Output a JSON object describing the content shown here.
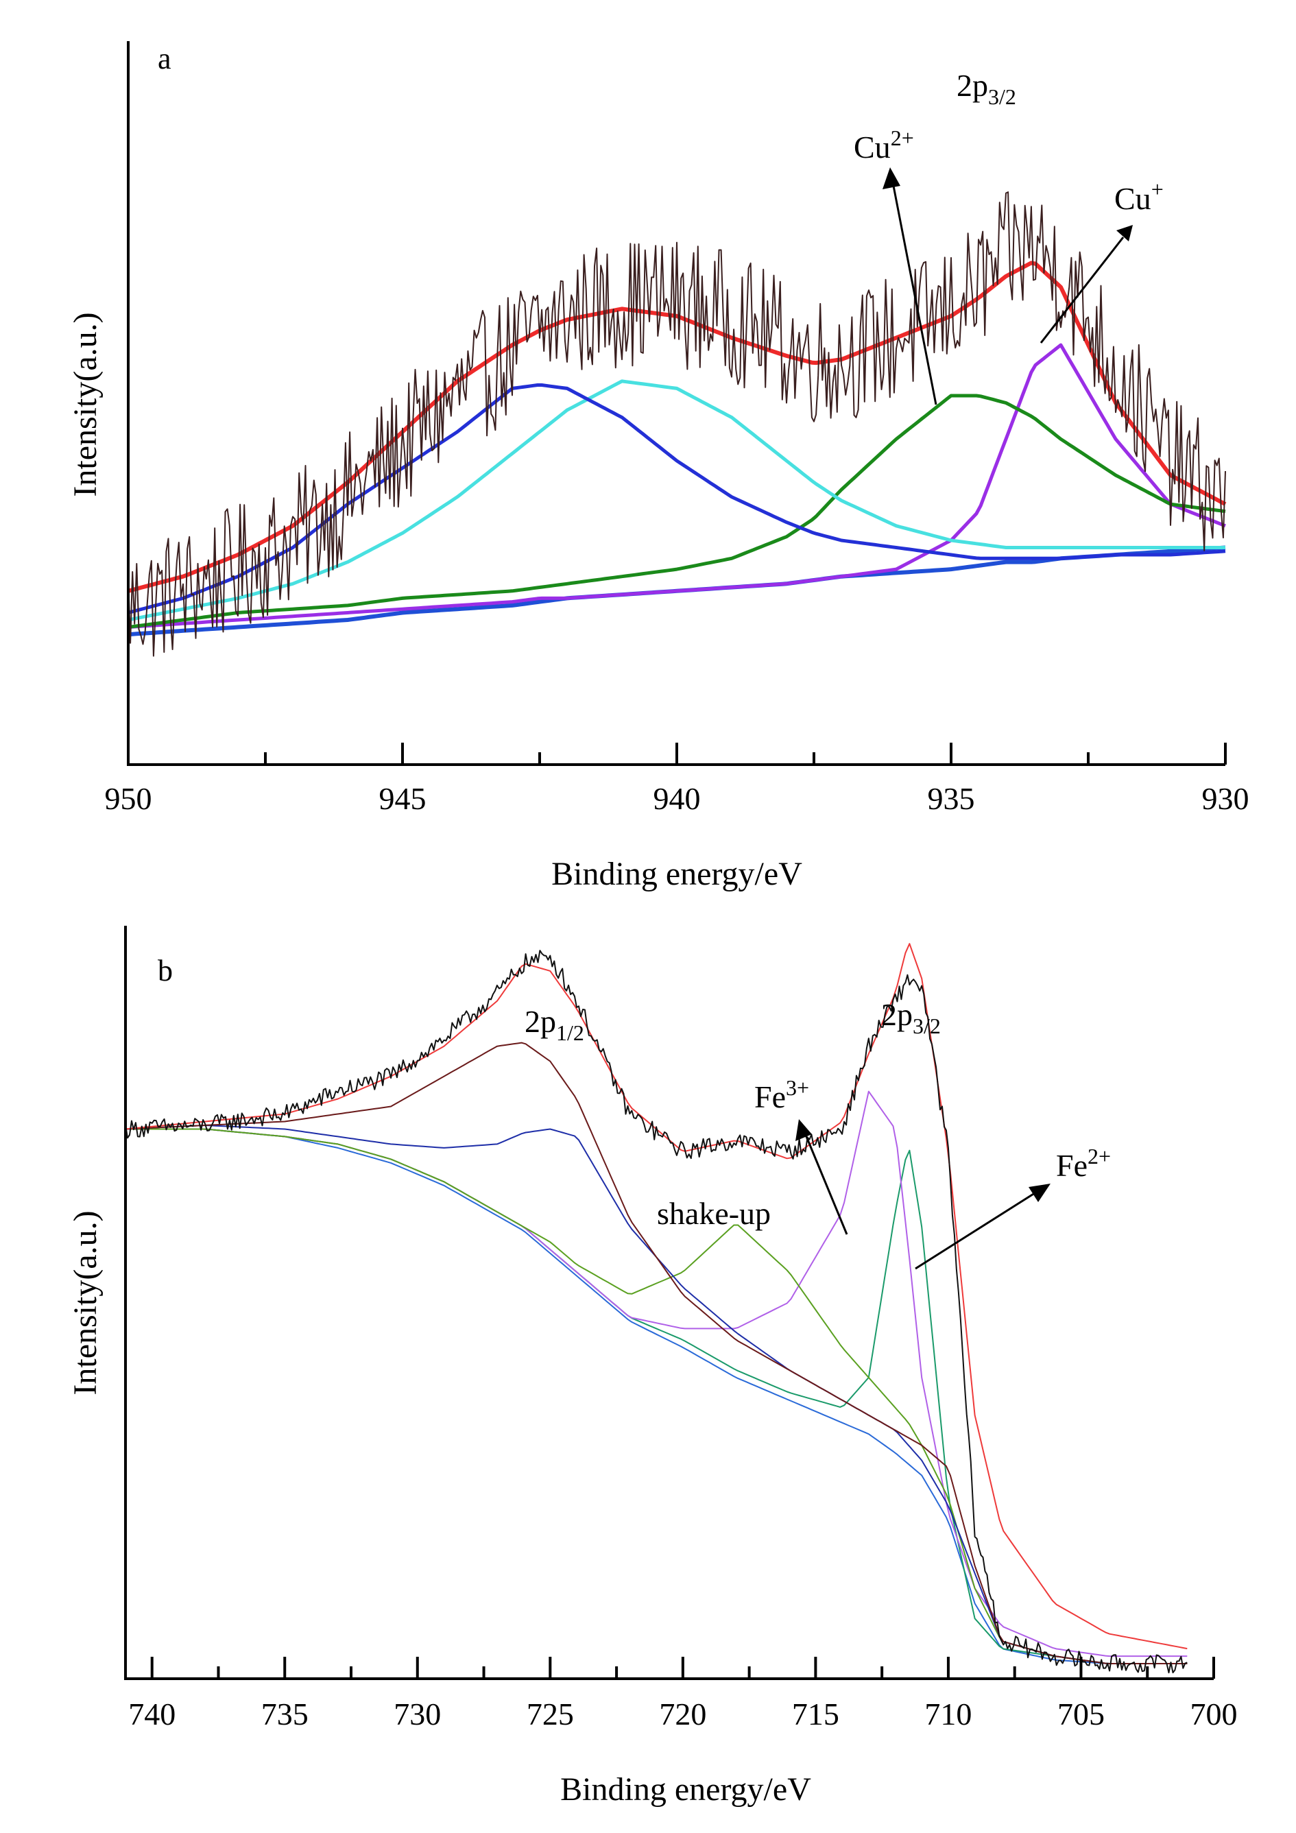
{
  "chart_data": [
    {
      "type": "line",
      "panel_label": "a",
      "xlabel": "Binding energy/eV",
      "ylabel": "Intensity(a.u.)",
      "xlim": [
        950,
        930
      ],
      "ylim": [
        0,
        1
      ],
      "x_ticks": [
        950,
        945,
        940,
        935,
        930
      ],
      "x_tick_labels": [
        "950",
        "945",
        "940",
        "935",
        "930"
      ],
      "x_minor_ticks": [
        947.5,
        942.5,
        937.5,
        932.5
      ],
      "x": [
        950,
        949,
        948,
        947,
        946,
        945,
        944,
        943,
        942.5,
        942,
        941,
        940,
        939,
        938,
        937.5,
        937,
        936,
        935,
        934.5,
        934,
        933.5,
        933,
        932,
        931,
        930
      ],
      "series": [
        {
          "name": "raw",
          "color": "#3a1f1f",
          "width": 2,
          "noise_amplitude": 0.09,
          "values": [
            0.22,
            0.24,
            0.27,
            0.31,
            0.37,
            0.44,
            0.51,
            0.57,
            0.6,
            0.62,
            0.64,
            0.64,
            0.62,
            0.58,
            0.56,
            0.56,
            0.59,
            0.63,
            0.66,
            0.7,
            0.72,
            0.68,
            0.55,
            0.42,
            0.36
          ]
        },
        {
          "name": "envelope",
          "color": "#ee2a2a",
          "width": 6,
          "values": [
            0.24,
            0.26,
            0.29,
            0.33,
            0.39,
            0.46,
            0.53,
            0.58,
            0.6,
            0.615,
            0.63,
            0.62,
            0.59,
            0.565,
            0.555,
            0.56,
            0.59,
            0.62,
            0.645,
            0.675,
            0.695,
            0.66,
            0.5,
            0.4,
            0.36
          ]
        },
        {
          "name": "peak-942.5",
          "color": "#2330d6",
          "width": 5,
          "values": [
            0.21,
            0.23,
            0.26,
            0.3,
            0.36,
            0.41,
            0.46,
            0.52,
            0.525,
            0.52,
            0.48,
            0.42,
            0.37,
            0.335,
            0.32,
            0.31,
            0.3,
            0.29,
            0.285,
            0.285,
            0.285,
            0.285,
            0.29,
            0.29,
            0.295
          ]
        },
        {
          "name": "peak-940",
          "color": "#48e0e0",
          "width": 5,
          "values": [
            0.2,
            0.215,
            0.23,
            0.25,
            0.28,
            0.32,
            0.37,
            0.43,
            0.46,
            0.49,
            0.53,
            0.52,
            0.48,
            0.42,
            0.39,
            0.365,
            0.33,
            0.31,
            0.305,
            0.3,
            0.3,
            0.3,
            0.3,
            0.3,
            0.3
          ]
        },
        {
          "name": "peak-935",
          "color": "#1a8a1a",
          "width": 5,
          "values": [
            0.19,
            0.2,
            0.21,
            0.215,
            0.22,
            0.23,
            0.235,
            0.24,
            0.245,
            0.25,
            0.26,
            0.27,
            0.285,
            0.315,
            0.34,
            0.38,
            0.45,
            0.51,
            0.51,
            0.5,
            0.48,
            0.45,
            0.4,
            0.36,
            0.35
          ]
        },
        {
          "name": "peak-933.3",
          "color": "#9a2ee6",
          "width": 5,
          "values": [
            0.19,
            0.195,
            0.2,
            0.205,
            0.21,
            0.215,
            0.22,
            0.225,
            0.23,
            0.23,
            0.235,
            0.24,
            0.245,
            0.25,
            0.255,
            0.26,
            0.27,
            0.31,
            0.35,
            0.45,
            0.55,
            0.58,
            0.45,
            0.36,
            0.33
          ]
        },
        {
          "name": "baseline",
          "color": "#1f4fd6",
          "width": 6,
          "values": [
            0.18,
            0.185,
            0.19,
            0.195,
            0.2,
            0.21,
            0.215,
            0.22,
            0.225,
            0.23,
            0.235,
            0.24,
            0.245,
            0.25,
            0.255,
            0.26,
            0.265,
            0.27,
            0.275,
            0.28,
            0.28,
            0.285,
            0.29,
            0.295,
            0.3
          ]
        }
      ],
      "annotations": [
        {
          "base": "2p",
          "sub": "3/2"
        },
        {
          "base": "Cu",
          "sup": "2+"
        },
        {
          "base": "Cu",
          "sup": "+"
        }
      ]
    },
    {
      "type": "line",
      "panel_label": "b",
      "xlabel": "Binding energy/eV",
      "ylabel": "Intensity(a.u.)",
      "xlim": [
        741,
        700
      ],
      "ylim": [
        0,
        1
      ],
      "x_ticks": [
        740,
        735,
        730,
        725,
        720,
        715,
        710,
        705,
        700
      ],
      "x_tick_labels": [
        "740",
        "735",
        "730",
        "725",
        "720",
        "715",
        "710",
        "705",
        "700"
      ],
      "x_minor_ticks": [
        737.5,
        732.5,
        727.5,
        722.5,
        717.5,
        712.5,
        707.5,
        702.5
      ],
      "x": [
        741,
        738,
        735,
        733,
        731,
        729,
        727,
        726,
        725,
        724,
        722,
        720,
        718,
        716,
        714,
        713,
        712,
        711.5,
        711,
        710,
        709,
        708,
        706,
        704,
        701
      ],
      "series": [
        {
          "name": "raw",
          "color": "#111111",
          "width": 2,
          "noise_amplitude": 0.012,
          "values": [
            0.73,
            0.735,
            0.75,
            0.78,
            0.8,
            0.85,
            0.91,
            0.95,
            0.96,
            0.9,
            0.75,
            0.7,
            0.715,
            0.7,
            0.73,
            0.84,
            0.9,
            0.93,
            0.92,
            0.7,
            0.2,
            0.05,
            0.03,
            0.02,
            0.02
          ]
        },
        {
          "name": "envelope",
          "color": "#ee3a3a",
          "width": 2,
          "values": [
            0.73,
            0.74,
            0.75,
            0.77,
            0.8,
            0.84,
            0.9,
            0.95,
            0.94,
            0.89,
            0.76,
            0.7,
            0.715,
            0.69,
            0.74,
            0.83,
            0.91,
            0.98,
            0.93,
            0.7,
            0.35,
            0.2,
            0.1,
            0.06,
            0.04
          ]
        },
        {
          "name": "peak-726.5",
          "color": "#6a1a1a",
          "width": 2,
          "values": [
            0.73,
            0.735,
            0.74,
            0.75,
            0.76,
            0.8,
            0.84,
            0.845,
            0.82,
            0.77,
            0.61,
            0.51,
            0.45,
            0.41,
            0.37,
            0.35,
            0.33,
            0.32,
            0.31,
            0.28,
            0.15,
            0.05,
            0.03,
            0.02,
            0.02
          ]
        },
        {
          "name": "peak-725",
          "color": "#1e2ea8",
          "width": 2,
          "values": [
            0.73,
            0.735,
            0.73,
            0.72,
            0.71,
            0.705,
            0.71,
            0.725,
            0.73,
            0.72,
            0.6,
            0.52,
            0.46,
            0.41,
            0.37,
            0.35,
            0.33,
            0.31,
            0.29,
            0.23,
            0.14,
            0.05,
            0.03,
            0.02,
            0.02
          ]
        },
        {
          "name": "shake-up",
          "color": "#5aa020",
          "width": 2,
          "values": [
            0.73,
            0.73,
            0.72,
            0.71,
            0.69,
            0.66,
            0.62,
            0.6,
            0.58,
            0.55,
            0.51,
            0.54,
            0.605,
            0.54,
            0.44,
            0.4,
            0.36,
            0.34,
            0.31,
            0.24,
            0.12,
            0.05,
            0.03,
            0.02,
            0.02
          ]
        },
        {
          "name": "peak-713.3",
          "color": "#b060e8",
          "width": 2,
          "values": [
            0.73,
            0.73,
            0.72,
            0.71,
            0.69,
            0.66,
            0.62,
            0.6,
            0.57,
            0.54,
            0.48,
            0.465,
            0.465,
            0.5,
            0.62,
            0.78,
            0.73,
            0.57,
            0.4,
            0.22,
            0.12,
            0.07,
            0.04,
            0.03,
            0.03
          ]
        },
        {
          "name": "peak-711.3",
          "color": "#1a9a6a",
          "width": 2,
          "values": [
            0.73,
            0.73,
            0.72,
            0.71,
            0.69,
            0.66,
            0.62,
            0.6,
            0.57,
            0.54,
            0.48,
            0.45,
            0.41,
            0.38,
            0.36,
            0.4,
            0.62,
            0.71,
            0.6,
            0.24,
            0.08,
            0.04,
            0.03,
            0.02,
            0.02
          ]
        },
        {
          "name": "baseline",
          "color": "#2a6ad8",
          "width": 2,
          "values": [
            0.73,
            0.73,
            0.72,
            0.705,
            0.685,
            0.655,
            0.615,
            0.595,
            0.565,
            0.535,
            0.475,
            0.44,
            0.4,
            0.37,
            0.34,
            0.325,
            0.3,
            0.285,
            0.27,
            0.21,
            0.1,
            0.04,
            0.025,
            0.02,
            0.02
          ]
        }
      ],
      "annotations": [
        {
          "base": "2p",
          "sub": "1/2"
        },
        {
          "base": "2p",
          "sub": "3/2"
        },
        {
          "base": "Fe",
          "sup": "3+"
        },
        {
          "base": "Fe",
          "sup": "2+"
        },
        {
          "text": "shake-up"
        }
      ]
    }
  ]
}
